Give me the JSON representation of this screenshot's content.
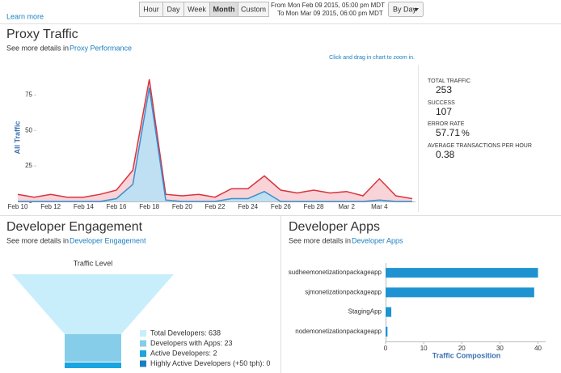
{
  "header": {
    "learn_more": "Learn more",
    "range_buttons": [
      "Hour",
      "Day",
      "Week",
      "Month",
      "Custom"
    ],
    "active_button": 3,
    "from": "From Mon Feb 09 2015, 05:00 pm MDT",
    "to": "To Mon Mar 09 2015, 06:00 pm MDT",
    "group_by": "By Day"
  },
  "proxy_traffic": {
    "title": "Proxy Traffic",
    "details_text": "See more details in",
    "details_link": "Proxy Performance",
    "zoom_hint": "Click and drag in chart to zoom in.",
    "chart": {
      "type": "line",
      "ylabel": "All Traffic",
      "categories": [
        "Feb 10",
        null,
        "Feb 12",
        null,
        "Feb 14",
        null,
        "Feb 16",
        null,
        "Feb 18",
        null,
        "Feb 20",
        null,
        "Feb 22",
        null,
        "Feb 24",
        null,
        "Feb 26",
        null,
        "Feb 28",
        null,
        "Mar 2",
        null,
        "Mar 4",
        null,
        null
      ],
      "series": [
        {
          "name": "All Traffic",
          "color": "#d9343f",
          "fill": "#f8d3d7",
          "values": [
            5,
            3,
            5,
            3,
            3,
            5,
            8,
            22,
            86,
            5,
            4,
            5,
            3,
            9,
            9,
            18,
            8,
            6,
            8,
            6,
            7,
            4,
            16,
            4,
            2
          ]
        },
        {
          "name": "Success",
          "color": "#3a8fd0",
          "fill": "#bfe0f2",
          "values": [
            0,
            0,
            0,
            0,
            0,
            0,
            2,
            12,
            80,
            1,
            0,
            0,
            0,
            2,
            2,
            7,
            0,
            0,
            0,
            0,
            0,
            0,
            1,
            0,
            0
          ]
        }
      ],
      "ylim": [
        0,
        90
      ],
      "yticks": [
        0,
        25,
        50,
        75
      ]
    },
    "stats": [
      {
        "label": "TOTAL TRAFFIC",
        "value": 253
      },
      {
        "label": "SUCCESS",
        "value": 107
      },
      {
        "label": "ERROR RATE",
        "value": 57.71,
        "unit": "%"
      },
      {
        "label": "AVERAGE TRANSACTIONS PER HOUR",
        "value": 0.38
      }
    ]
  },
  "developer_engagement": {
    "title": "Developer Engagement",
    "details_text": "See more details in",
    "details_link": "Developer Engagement",
    "funnel_title": "Traffic Level",
    "legend": [
      {
        "text": "Total Developers: 638",
        "color": "#c8eefc"
      },
      {
        "text": "Developers with Apps: 23",
        "color": "#86cdea"
      },
      {
        "text": "Active Developers: 2",
        "color": "#1aa5e0"
      },
      {
        "text": "Highly Active Developers (+50 tph): 0",
        "color": "#1a7fc1"
      }
    ]
  },
  "developer_apps": {
    "title": "Developer Apps",
    "details_text": "See more details in",
    "details_link": "Developer Apps",
    "chart": {
      "type": "bar",
      "orientation": "horizontal",
      "categories": [
        "sudheemonetizationpackageapp",
        "sjmonetizationpackageapp",
        "StagingApp",
        "nodemonetizationpackageapp"
      ],
      "values": [
        40,
        39,
        1.5,
        0.5
      ],
      "color": "#1f93d1",
      "xlim": [
        0,
        42
      ],
      "xticks": [
        0,
        10,
        20,
        30,
        40
      ],
      "xlabel": "Traffic Composition"
    }
  }
}
